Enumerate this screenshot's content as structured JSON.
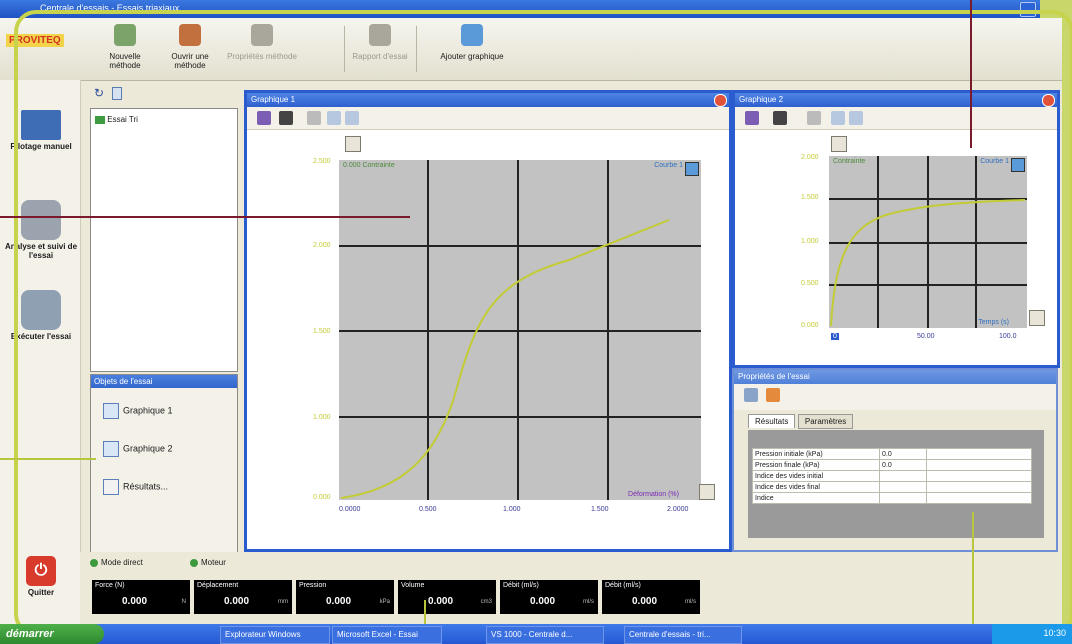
{
  "window": {
    "title": "Centrale d'essais - Essais triaxiaux"
  },
  "brand": "PROVITEQ",
  "toolbar": [
    {
      "label": "Nouvelle méthode",
      "disabled": false
    },
    {
      "label": "Ouvrir une méthode",
      "disabled": false
    },
    {
      "label": "Propriétés méthode",
      "disabled": true
    },
    {
      "label": "Rapport d'essai",
      "disabled": true
    },
    {
      "label": "Ajouter graphique",
      "disabled": false
    }
  ],
  "left_menu": [
    {
      "label": "Pilotage manuel"
    },
    {
      "label": "Analyse et suivi de l'essai"
    },
    {
      "label": "Exécuter l'essai"
    },
    {
      "label": "Quitter"
    }
  ],
  "file_tree": {
    "item": "Essai Tri"
  },
  "lower_list": {
    "title": "Objets de l'essai",
    "items": [
      "Graphique 1",
      "Graphique 2",
      "Résultats..."
    ]
  },
  "graph1": {
    "title": "Graphique 1",
    "y_ticks": [
      "0.000",
      "1.000",
      "1.500",
      "2.000",
      "2.500"
    ],
    "corner_tl": "0.000 Contrainte",
    "corner_tr": "Courbe 1",
    "x_ticks": [
      "0.0000",
      "0.500",
      "1.000",
      "1.500",
      "2.0000"
    ],
    "x_axis_label": "Déformation (%)"
  },
  "graph2": {
    "title": "Graphique 2",
    "y_ticks": [
      "2.000",
      "1.500",
      "1.000",
      "0.500",
      "0.000"
    ],
    "corner_tl": "Contrainte",
    "corner_tr": "Courbe 1",
    "x_ticks": [
      "0",
      "50.00",
      "100.0"
    ],
    "x_axis_label": "Temps (s)"
  },
  "properties": {
    "title": "Propriétés de l'essai",
    "tabs": [
      "Résultats",
      "Paramètres"
    ],
    "rows": [
      {
        "name": "Pression initiale (kPa)",
        "value": "0.0"
      },
      {
        "name": "Pression finale (kPa)",
        "value": "0.0"
      },
      {
        "name": "Indice des vides initial",
        "value": ""
      },
      {
        "name": "Indice des vides final",
        "value": ""
      },
      {
        "name": "Indice",
        "value": ""
      }
    ]
  },
  "status": {
    "led1": "Mode direct",
    "led2": "Moteur"
  },
  "meters": [
    {
      "name": "Force (N)",
      "value": "0.000",
      "unit": "N"
    },
    {
      "name": "Déplacement",
      "value": "0.000",
      "unit": "mm"
    },
    {
      "name": "Pression",
      "value": "0.000",
      "unit": "kPa"
    },
    {
      "name": "Volume",
      "value": "0.000",
      "unit": "cm3"
    },
    {
      "name": "Débit (ml/s)",
      "value": "0.000",
      "unit": "ml/s"
    },
    {
      "name": "Débit (ml/s)",
      "value": "0.000",
      "unit": "ml/s"
    }
  ],
  "taskbar": {
    "start": "démarrer",
    "tasks": [
      "Explorateur Windows",
      "Microsoft Excel - Essai",
      "VS 1000 - Centrale d...",
      "Centrale d'essais - tri..."
    ],
    "clock": "10:30"
  },
  "colors": {
    "accent": "#c8d34d",
    "window_blue": "#2a5cd0",
    "curve": "#c2cc34",
    "callout": "#7b1a2c"
  }
}
